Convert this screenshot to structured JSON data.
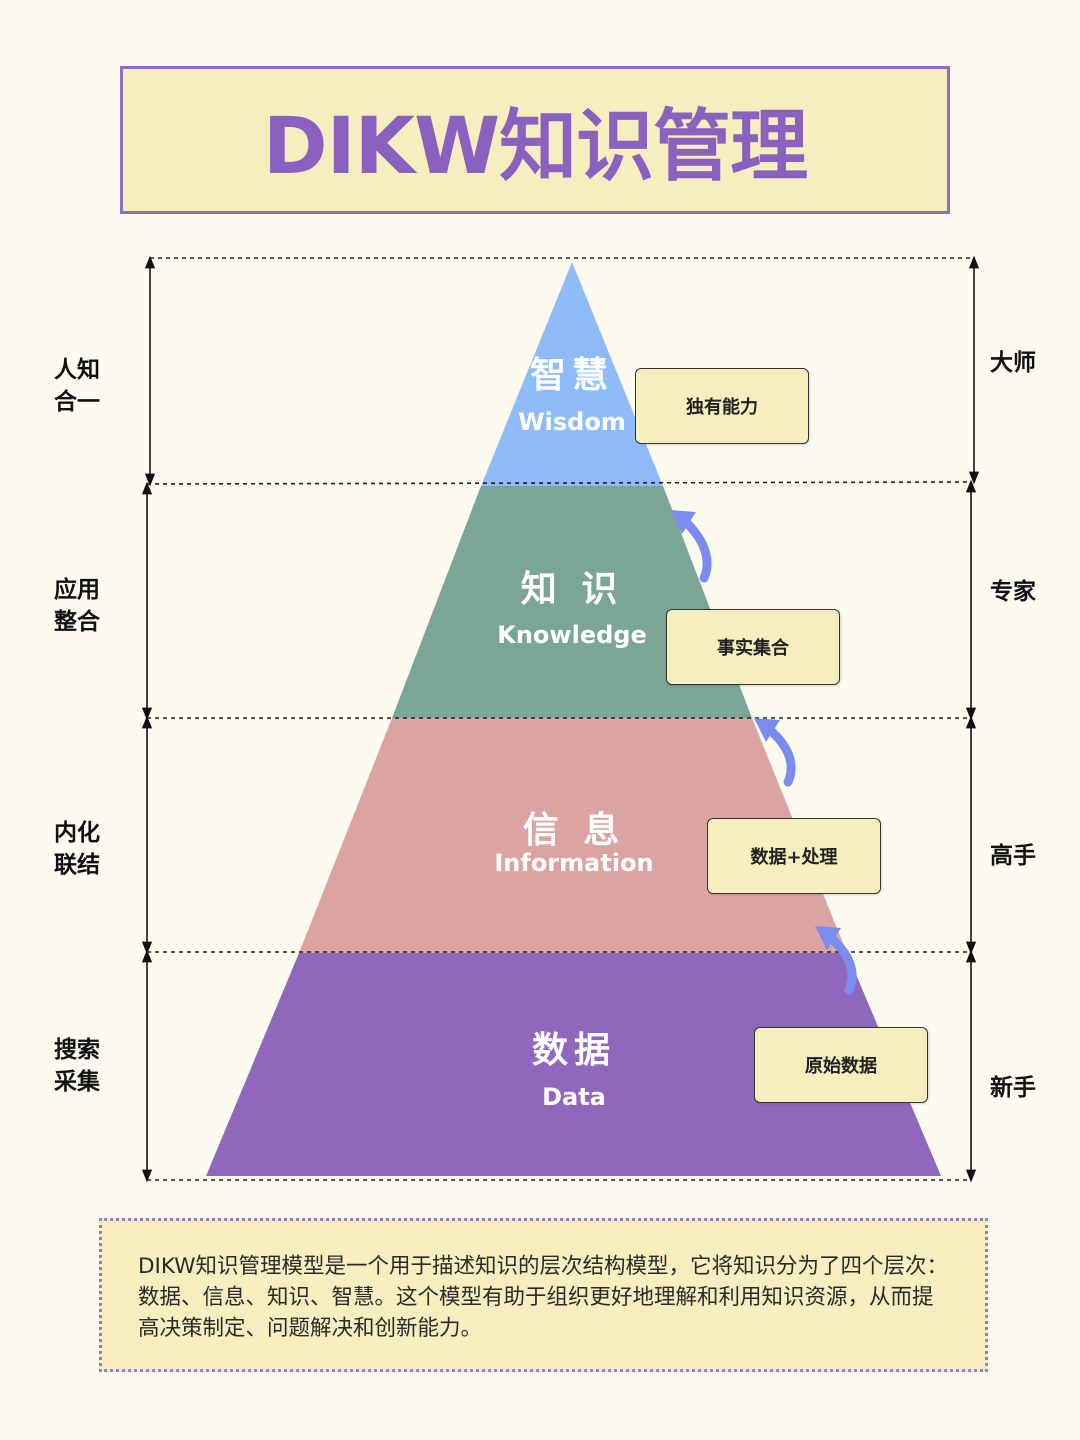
{
  "title": "DIKW知识管理",
  "layers": [
    {
      "cn": "智慧",
      "en": "Wisdom",
      "tag": "独有能力",
      "left_label": [
        "人知",
        "合一"
      ],
      "right_label": "大师",
      "color": "#8fbcf8"
    },
    {
      "cn": "知 识",
      "en": "Knowledge",
      "tag": "事实集合",
      "left_label": [
        "应用",
        "整合"
      ],
      "right_label": "专家",
      "color": "#7aa597"
    },
    {
      "cn": "信 息",
      "en": "Information",
      "tag": "数据+处理",
      "left_label": [
        "内化",
        "联结"
      ],
      "right_label": "高手",
      "color": "#dba3a1"
    },
    {
      "cn": "数据",
      "en": "Data",
      "tag": "原始数据",
      "left_label": [
        "搜索",
        "采集"
      ],
      "right_label": "新手",
      "color": "#8f68bd"
    }
  ],
  "colors": {
    "title_text": "#8b61c0",
    "title_border": "#8e6fc4",
    "box_fill": "#f6eebf",
    "arrow": "#7b8cf0",
    "background": "#fdfbef"
  },
  "icons": {
    "curved_arrow": "curved-up-arrow-icon",
    "double_arrow": "vertical-double-arrow-icon"
  },
  "description": "DIKW知识管理模型是一个用于描述知识的层次结构模型，它将知识分为了四个层次：数据、信息、知识、智慧。这个模型有助于组织更好地理解和利用知识资源，从而提高决策制定、问题解决和创新能力。"
}
